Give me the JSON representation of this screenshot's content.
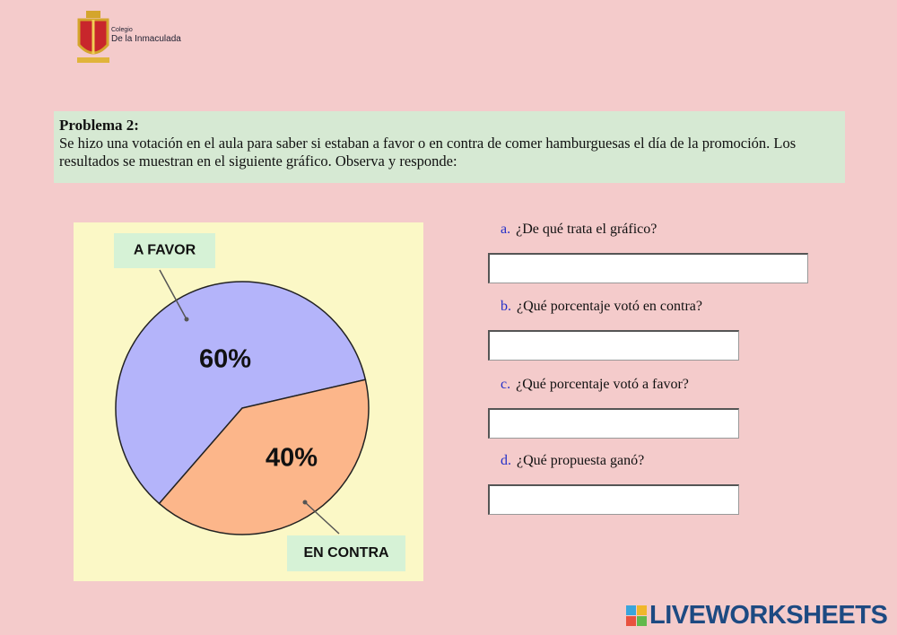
{
  "logo": {
    "line1": "Colegio",
    "line2": "De la Inmaculada"
  },
  "problem": {
    "title": "Problema 2:",
    "text": "Se hizo una votación en el aula para saber si estaban a favor o en contra de comer hamburguesas el día de la promoción. Los resultados se muestran en el siguiente gráfico. Observa y responde:"
  },
  "chart_data": {
    "type": "pie",
    "categories": [
      "A FAVOR",
      "EN CONTRA"
    ],
    "values": [
      60,
      40
    ],
    "value_labels": [
      "60%",
      "40%"
    ],
    "colors": [
      "#b4b4fa",
      "#fcb68a"
    ]
  },
  "questions": [
    {
      "letter": "a.",
      "text": "¿De qué trata el gráfico?"
    },
    {
      "letter": "b.",
      "text": "¿Qué porcentaje votó en contra?"
    },
    {
      "letter": "c.",
      "text": "¿Qué porcentaje votó a favor?"
    },
    {
      "letter": "d.",
      "text": "¿Qué propuesta ganó?"
    }
  ],
  "footer": {
    "brand": "LIVEWORKSHEETS"
  }
}
